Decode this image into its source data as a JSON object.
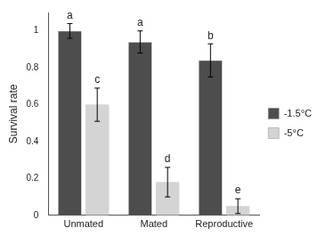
{
  "chart_data": {
    "type": "bar",
    "categories": [
      "Unmated",
      "Mated",
      "Reproductive"
    ],
    "y_label": "Survival rate",
    "series": [
      {
        "name": "-1.5°C",
        "color": "#4d4d4d",
        "values": [
          1.0,
          0.94,
          0.84
        ],
        "errors": [
          0.04,
          0.06,
          0.09
        ]
      },
      {
        "name": "-5°C",
        "color": "#d4d4d4",
        "values": [
          0.6,
          0.18,
          0.05
        ],
        "errors": [
          0.09,
          0.08,
          0.04
        ]
      }
    ],
    "annotations": [
      {
        "category": "Unmated",
        "series": "-1.5°C",
        "text": "a"
      },
      {
        "category": "Unmated",
        "series": "-5°C",
        "text": "c"
      },
      {
        "category": "Mated",
        "series": "-1.5°C",
        "text": "a"
      },
      {
        "category": "Mated",
        "series": "-5°C",
        "text": "d"
      },
      {
        "category": "Reproductive",
        "series": "-1.5°C",
        "text": "b"
      },
      {
        "category": "Reproductive",
        "series": "-5°C",
        "text": "e"
      }
    ],
    "ylim": [
      0,
      1.1
    ],
    "yticks": [
      0,
      0.2,
      0.4,
      0.6,
      0.8,
      1
    ],
    "grid": false,
    "legend": "right"
  }
}
